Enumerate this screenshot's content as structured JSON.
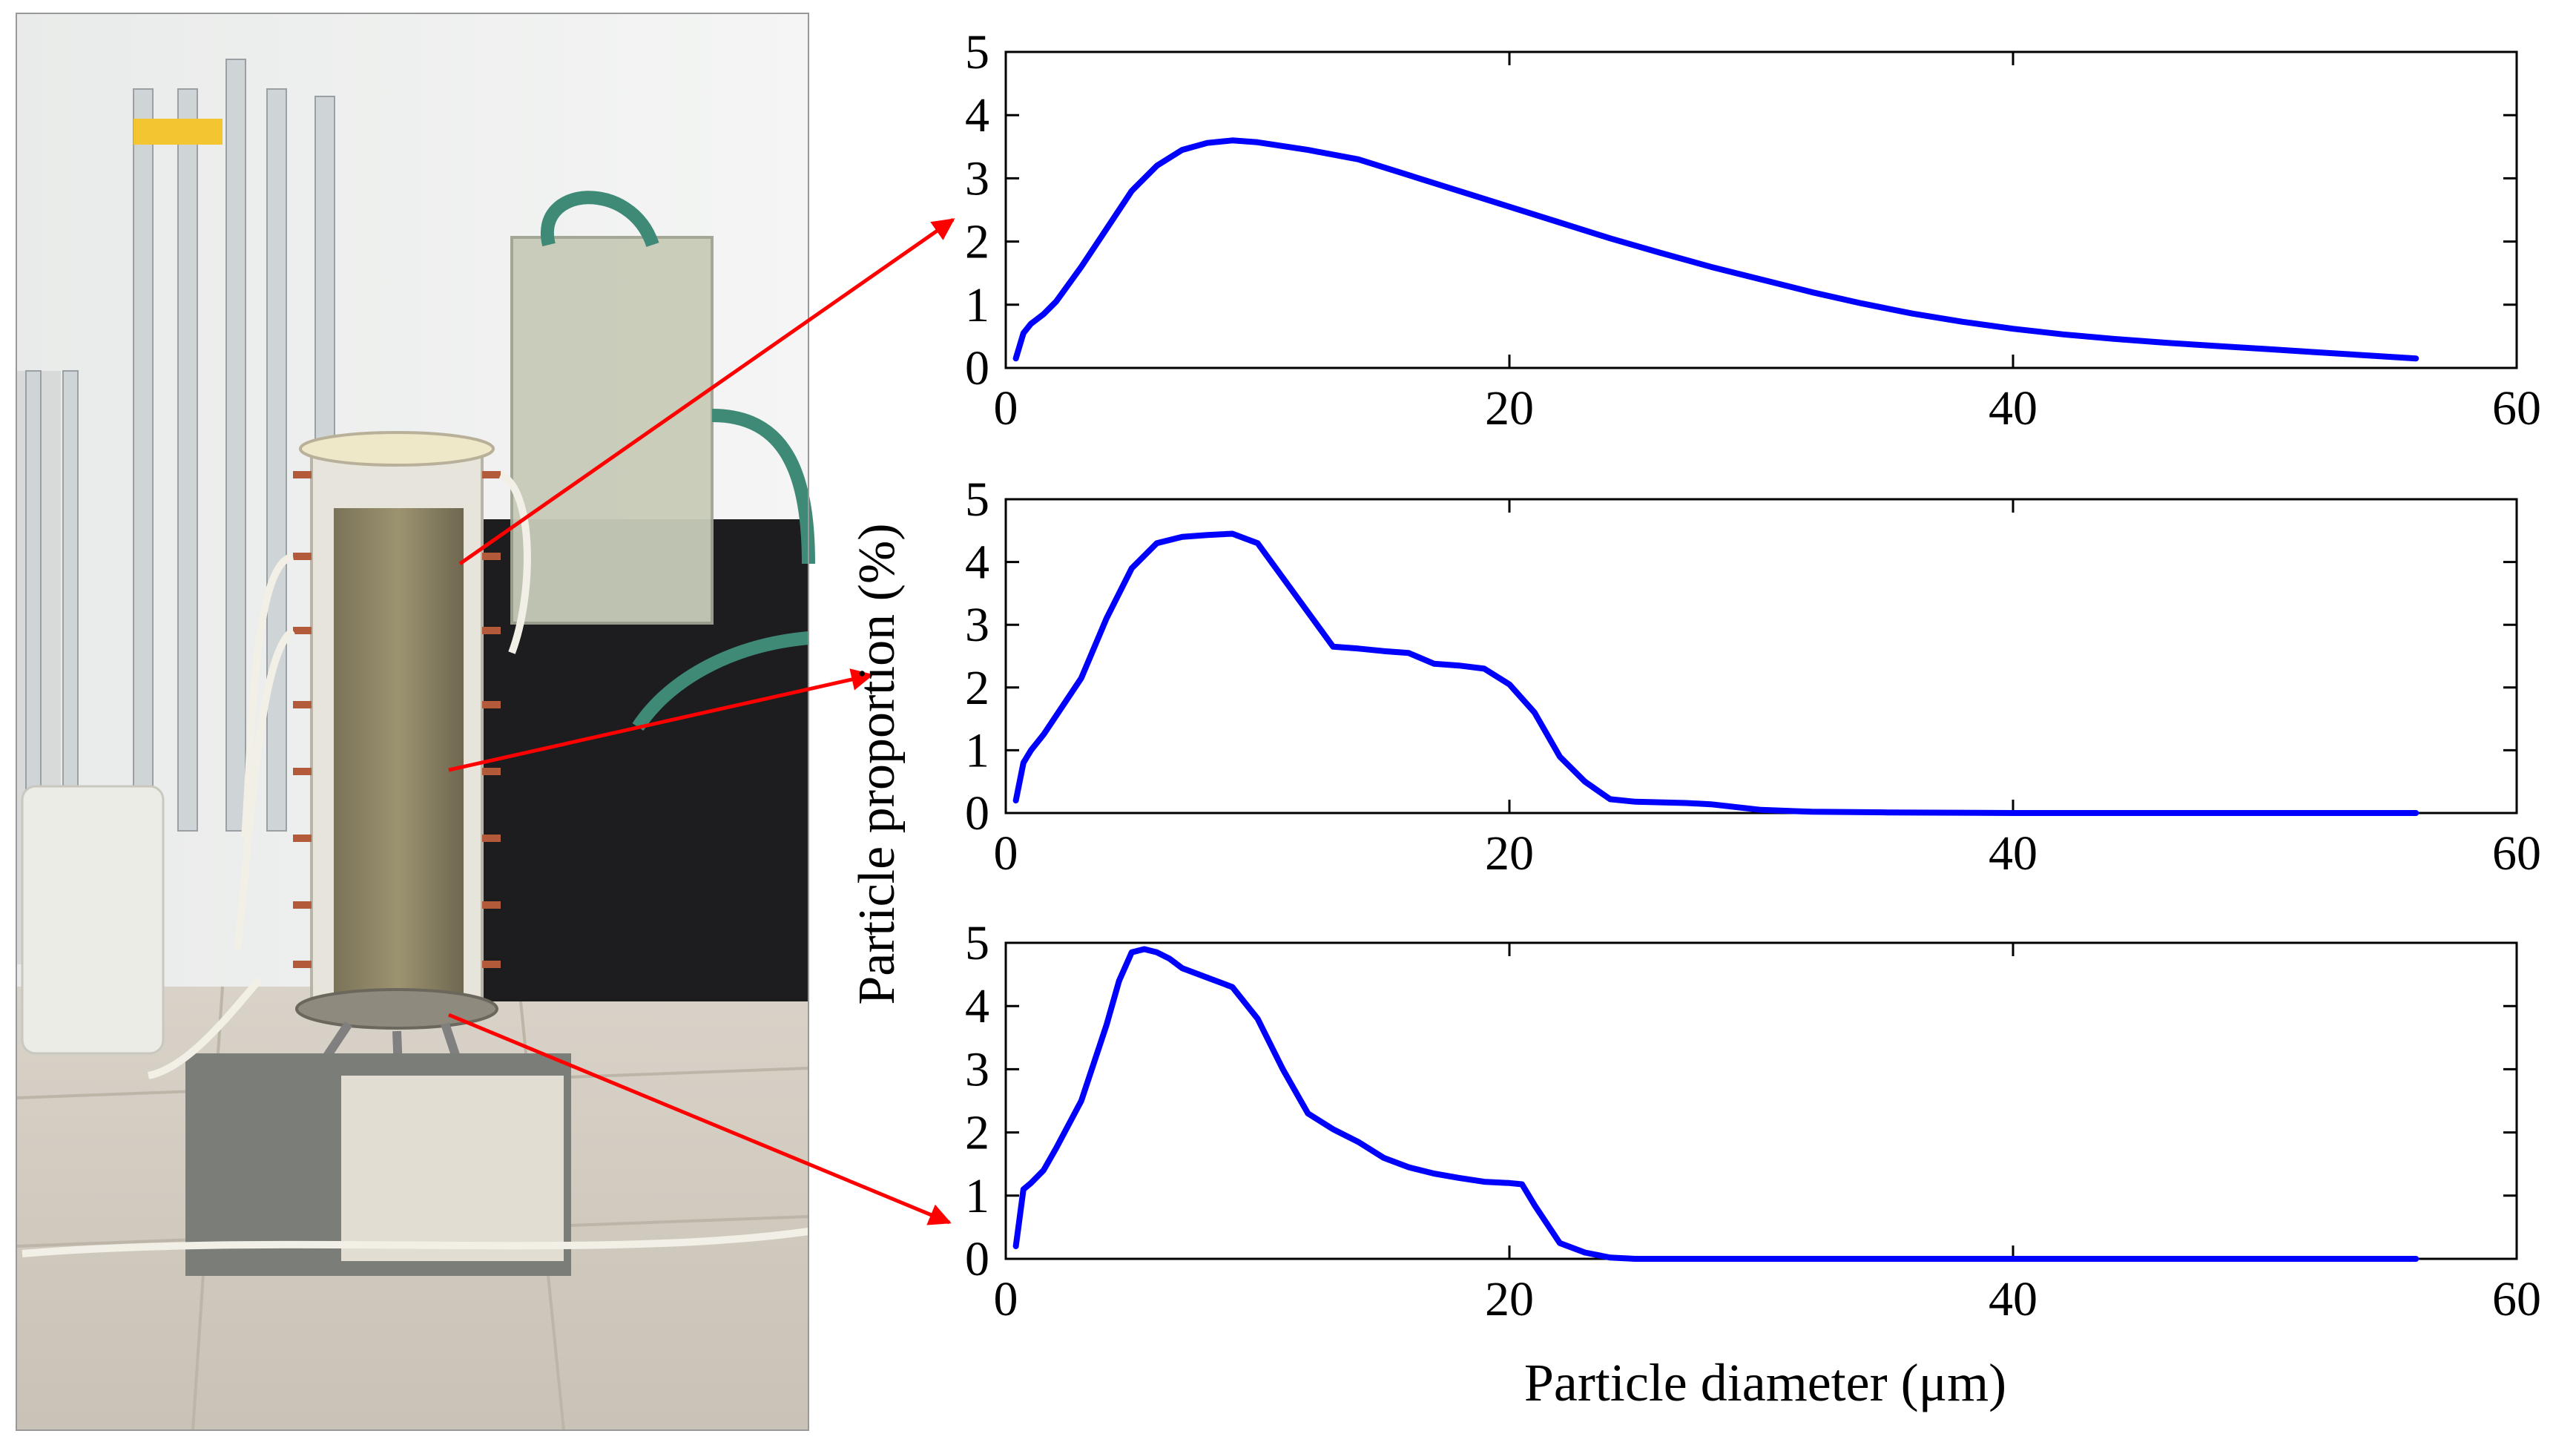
{
  "figure": {
    "photo_caption": "",
    "ylabel": "Particle proportion (%)",
    "xlabel": "Particle diameter (μm)"
  },
  "colors": {
    "series_line": "#0000ff",
    "arrow": "#ff0000",
    "axes": "#000000",
    "background": "#ffffff"
  },
  "chart_data": [
    {
      "type": "line",
      "title": "",
      "xlabel": "",
      "ylabel": "",
      "xlim": [
        0,
        60
      ],
      "ylim": [
        0,
        5
      ],
      "xticks": [
        0,
        20,
        40,
        60
      ],
      "yticks": [
        0,
        1,
        2,
        3,
        4,
        5
      ],
      "grid": false,
      "series": [
        {
          "x": [
            0.4,
            0.7,
            1,
            1.5,
            2,
            3,
            4,
            5,
            6,
            7,
            8,
            9,
            10,
            12,
            14,
            16,
            18,
            20,
            22,
            24,
            26,
            28,
            30,
            32,
            34,
            36,
            38,
            40,
            42,
            44,
            46,
            48,
            50,
            52,
            54,
            56
          ],
          "y": [
            0.15,
            0.55,
            0.7,
            0.85,
            1.05,
            1.6,
            2.2,
            2.8,
            3.2,
            3.45,
            3.56,
            3.6,
            3.57,
            3.45,
            3.3,
            3.05,
            2.8,
            2.55,
            2.3,
            2.05,
            1.82,
            1.6,
            1.4,
            1.2,
            1.02,
            0.86,
            0.73,
            0.62,
            0.53,
            0.46,
            0.4,
            0.35,
            0.3,
            0.25,
            0.2,
            0.15
          ]
        }
      ]
    },
    {
      "type": "line",
      "title": "",
      "xlabel": "",
      "ylabel": "",
      "xlim": [
        0,
        60
      ],
      "ylim": [
        0,
        5
      ],
      "xticks": [
        0,
        20,
        40,
        60
      ],
      "yticks": [
        0,
        1,
        2,
        3,
        4,
        5
      ],
      "grid": false,
      "series": [
        {
          "x": [
            0.4,
            0.7,
            1,
            1.5,
            2,
            3,
            4,
            5,
            6,
            7,
            8,
            9,
            10,
            11,
            12,
            13,
            14,
            15,
            16,
            17,
            18,
            19,
            20,
            21,
            22,
            23,
            24,
            25,
            26,
            27,
            28,
            30,
            32,
            35,
            40,
            45,
            50,
            56
          ],
          "y": [
            0.2,
            0.8,
            1.0,
            1.25,
            1.55,
            2.15,
            3.1,
            3.9,
            4.3,
            4.4,
            4.43,
            4.45,
            4.3,
            3.75,
            3.2,
            2.65,
            2.62,
            2.58,
            2.55,
            2.38,
            2.35,
            2.3,
            2.05,
            1.6,
            0.9,
            0.5,
            0.22,
            0.18,
            0.17,
            0.16,
            0.14,
            0.05,
            0.02,
            0.01,
            0,
            0,
            0,
            0
          ]
        }
      ]
    },
    {
      "type": "line",
      "title": "",
      "xlabel": "Particle diameter (μm)",
      "ylabel": "",
      "xlim": [
        0,
        60
      ],
      "ylim": [
        0,
        5
      ],
      "xticks": [
        0,
        20,
        40,
        60
      ],
      "yticks": [
        0,
        1,
        2,
        3,
        4,
        5
      ],
      "grid": false,
      "series": [
        {
          "x": [
            0.4,
            0.7,
            1,
            1.5,
            2,
            3,
            4,
            4.5,
            5,
            5.5,
            6,
            6.5,
            7,
            8,
            9,
            10,
            11,
            12,
            13,
            14,
            15,
            16,
            17,
            18,
            19,
            20,
            20.5,
            21,
            22,
            23,
            24,
            25,
            30,
            35,
            40,
            45,
            50,
            56
          ],
          "y": [
            0.2,
            1.1,
            1.2,
            1.4,
            1.75,
            2.5,
            3.7,
            4.4,
            4.85,
            4.9,
            4.85,
            4.75,
            4.6,
            4.45,
            4.3,
            3.8,
            3.0,
            2.3,
            2.05,
            1.85,
            1.6,
            1.45,
            1.35,
            1.28,
            1.22,
            1.2,
            1.18,
            0.85,
            0.25,
            0.1,
            0.02,
            0,
            0,
            0,
            0,
            0,
            0,
            0
          ]
        }
      ]
    }
  ]
}
